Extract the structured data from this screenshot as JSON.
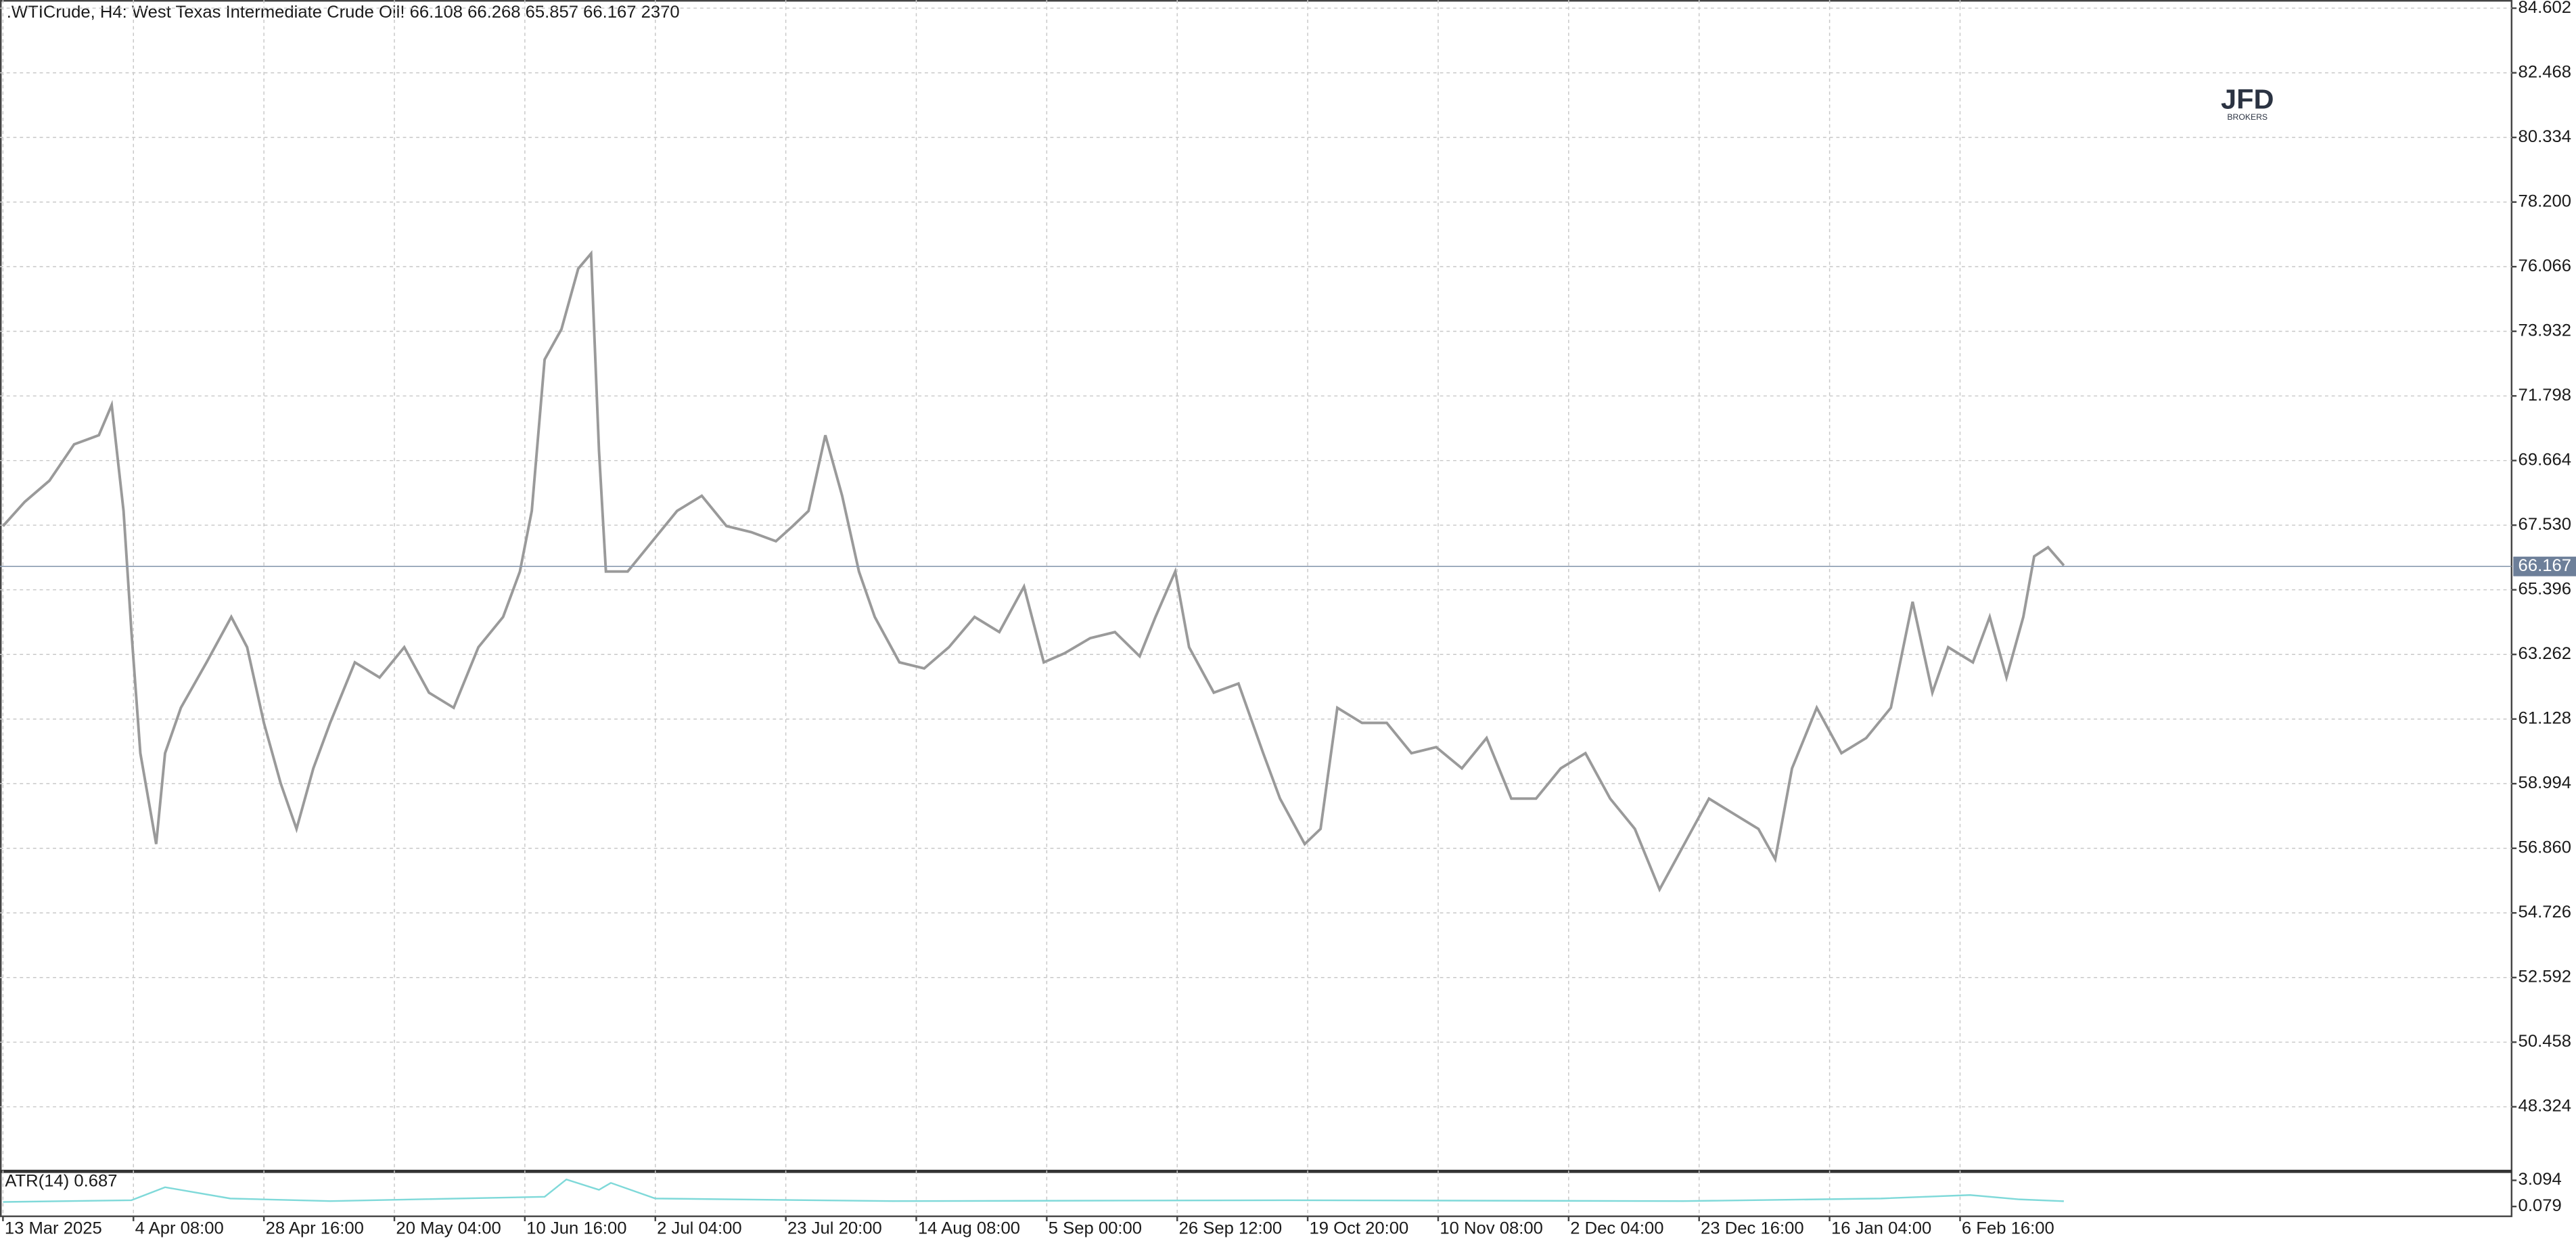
{
  "chart_data": {
    "type": "line",
    "title": ".WTICrude, H4:  West Texas Intermediate Crude Oil!  66.108 66.268 65.857 66.167  2370",
    "logo": "JFD",
    "logo_sub": "BROKERS",
    "xlim": [
      -3,
      2538
    ],
    "xticks": [
      {
        "value": 0,
        "label": "13 Mar 2025"
      },
      {
        "value": 132,
        "label": "4 Apr 08:00"
      },
      {
        "value": 264,
        "label": "28 Apr 16:00"
      },
      {
        "value": 396,
        "label": "20 May 04:00"
      },
      {
        "value": 528,
        "label": "10 Jun 16:00"
      },
      {
        "value": 660,
        "label": "2 Jul 04:00"
      },
      {
        "value": 792,
        "label": "23 Jul 20:00"
      },
      {
        "value": 924,
        "label": "14 Aug 08:00"
      },
      {
        "value": 1056,
        "label": "5 Sep 00:00"
      },
      {
        "value": 1188,
        "label": "26 Sep 12:00"
      },
      {
        "value": 1320,
        "label": "19 Oct 20:00"
      },
      {
        "value": 1452,
        "label": "10 Nov 08:00"
      },
      {
        "value": 1584,
        "label": "2 Dec 04:00"
      },
      {
        "value": 1716,
        "label": "23 Dec 16:00"
      },
      {
        "value": 1848,
        "label": "16 Jan 04:00"
      },
      {
        "value": 1980,
        "label": "6 Feb 16:00"
      }
    ],
    "ylim": [
      46.219,
      84.872
    ],
    "yticks": [
      84.602,
      82.468,
      80.334,
      {
        "value": 78.2,
        "label": "78.200"
      },
      76.066,
      73.932,
      71.798,
      69.664,
      {
        "value": 67.53,
        "label": "67.530"
      },
      65.396,
      63.262,
      61.128,
      58.994,
      {
        "value": 56.86,
        "label": "56.860"
      },
      54.726,
      52.592,
      50.458,
      48.324
    ],
    "y2lim": [
      -1.052,
      4.036
    ],
    "y2ticks": [
      3.094,
      0.079
    ],
    "grid": true,
    "last_price": 66.167,
    "series": [
      {
        "name": ".WTICrude",
        "color": "#9a9a9a",
        "x": [
          0,
          22,
          47,
          72,
          97,
          110,
          122,
          130,
          139,
          155,
          164,
          180,
          206,
          231,
          247,
          264,
          281,
          297,
          314,
          331,
          356,
          381,
          406,
          431,
          456,
          481,
          506,
          523,
          535,
          548,
          565,
          582,
          595,
          603,
          610,
          632,
          657,
          682,
          707,
          732,
          757,
          782,
          799,
          815,
          832,
          849,
          866,
          882,
          907,
          932,
          957,
          983,
          1008,
          1033,
          1053,
          1074,
          1100,
          1125,
          1150,
          1166,
          1186,
          1200,
          1225,
          1250,
          1275,
          1292,
          1317,
          1333,
          1350,
          1375,
          1400,
          1425,
          1450,
          1476,
          1501,
          1526,
          1551,
          1576,
          1601,
          1626,
          1651,
          1676,
          1701,
          1726,
          1751,
          1776,
          1793,
          1810,
          1835,
          1860,
          1885,
          1910,
          1932,
          1952,
          1968,
          1993,
          2010,
          2027,
          2044,
          2055,
          2069,
          2085
        ],
        "values": [
          67.5,
          68.3,
          69.0,
          70.2,
          70.5,
          71.5,
          68,
          64,
          60,
          57,
          60,
          61.5,
          63,
          64.5,
          63.5,
          61,
          59,
          57.5,
          59.5,
          61,
          63,
          62.5,
          63.5,
          62,
          61.5,
          63.5,
          64.5,
          66,
          68,
          73,
          74,
          76,
          76.5,
          70,
          66,
          66,
          67,
          68,
          68.5,
          67.5,
          67.3,
          67,
          67.5,
          68,
          70.5,
          68.5,
          66,
          64.5,
          63,
          62.8,
          63.5,
          64.5,
          64,
          65.5,
          63,
          63.3,
          63.8,
          64,
          63.2,
          64.5,
          66,
          63.5,
          62,
          62.3,
          60,
          58.5,
          57,
          57.5,
          61.5,
          61,
          61,
          60,
          60.2,
          59.5,
          60.5,
          58.5,
          58.5,
          59.5,
          60,
          58.5,
          57.5,
          55.5,
          57,
          58.5,
          58,
          57.5,
          56.5,
          59.5,
          61.5,
          60,
          60.5,
          61.5,
          65,
          62,
          63.5,
          63,
          64.5,
          62.5,
          64.5,
          66.5,
          66.8,
          66.2
        ]
      },
      {
        "name": "ATR(14) 0.687",
        "color": "#7fd9d9",
        "axis": "y2",
        "x": [
          0,
          130,
          164,
          230,
          331,
          548,
          570,
          603,
          615,
          660,
          900,
          1300,
          1700,
          1900,
          1990,
          2040,
          2085
        ],
        "values": [
          0.6,
          0.8,
          2.3,
          1.0,
          0.7,
          1.2,
          3.2,
          2.0,
          2.8,
          1.0,
          0.7,
          0.8,
          0.7,
          1.0,
          1.4,
          0.9,
          0.687
        ]
      }
    ]
  }
}
